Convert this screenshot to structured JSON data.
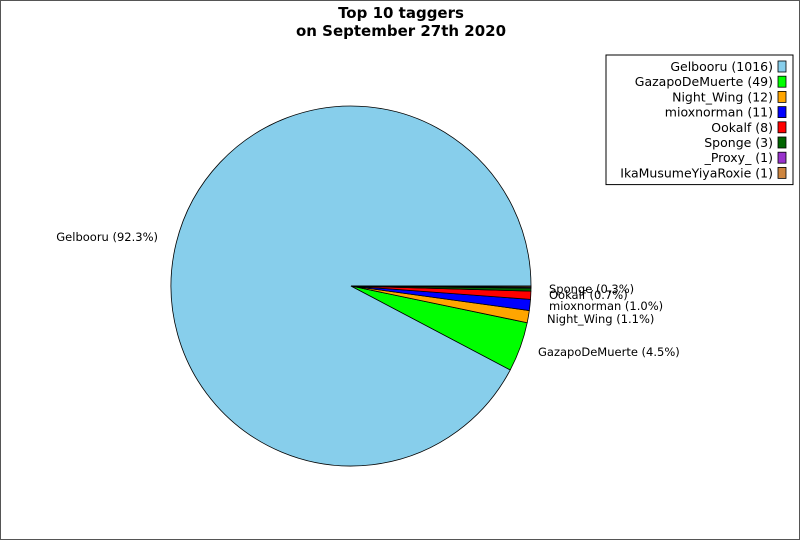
{
  "chart_data": {
    "type": "pie",
    "title": [
      "Top 10 taggers",
      "on September 27th 2020"
    ],
    "slices": [
      {
        "name": "Gelbooru",
        "value": 1016,
        "label": "Gelbooru (92.3%)",
        "legend": "Gelbooru (1016)",
        "color": "#87ceeb"
      },
      {
        "name": "GazapoDeMuerte",
        "value": 49,
        "label": "GazapoDeMuerte (4.5%)",
        "legend": "GazapoDeMuerte (49)",
        "color": "#00ff00"
      },
      {
        "name": "Night_Wing",
        "value": 12,
        "label": "Night_Wing (1.1%)",
        "legend": "Night_Wing (12)",
        "color": "#ffa500"
      },
      {
        "name": "mioxnorman",
        "value": 11,
        "label": "mioxnorman (1.0%)",
        "legend": "mioxnorman (11)",
        "color": "#0000ff"
      },
      {
        "name": "Ookalf",
        "value": 8,
        "label": "Ookalf (0.7%)",
        "legend": "Ookalf (8)",
        "color": "#ff0000"
      },
      {
        "name": "Sponge",
        "value": 3,
        "label": "Sponge (0.3%)",
        "legend": "Sponge (3)",
        "color": "#006400"
      },
      {
        "name": "_Proxy_",
        "value": 1,
        "label": "",
        "legend": "_Proxy_ (1)",
        "color": "#9932cc"
      },
      {
        "name": "IkaMusumeYiyaRoxie",
        "value": 1,
        "label": "",
        "legend": "IkaMusumeYiyaRoxie (1)",
        "color": "#cd853f"
      }
    ],
    "legend_position": "top-right",
    "start_angle": "right, counter-clockwise"
  }
}
